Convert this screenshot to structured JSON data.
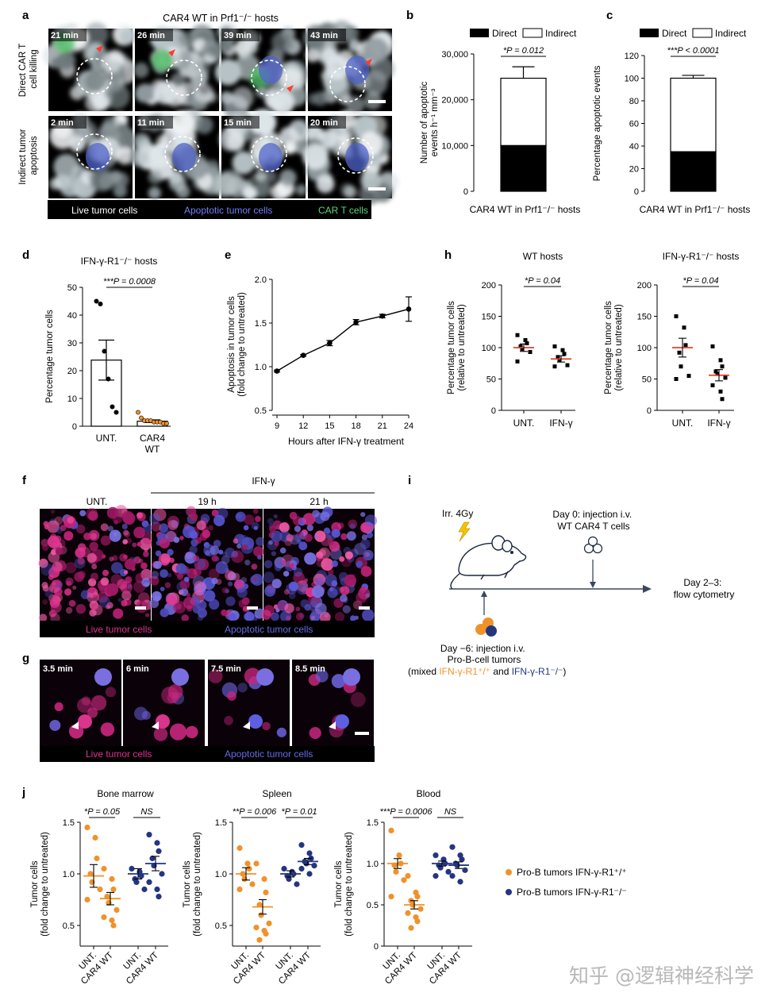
{
  "panel_letters": {
    "a": "a",
    "b": "b",
    "c": "c",
    "d": "d",
    "e": "e",
    "f": "f",
    "g": "g",
    "h": "h",
    "i": "i",
    "j": "j"
  },
  "panel_a": {
    "title": "CAR4 WT in Prf1⁻/⁻ hosts",
    "row1_label": [
      "Direct CAR T",
      "cell killing"
    ],
    "row2_label": [
      "Indirect tumor",
      "apoptosis"
    ],
    "row1_times": [
      "21 min",
      "26 min",
      "39 min",
      "43 min"
    ],
    "row2_times": [
      "2 min",
      "11 min",
      "15 min",
      "20 min"
    ],
    "legend": {
      "live": "Live tumor cells",
      "apoptotic": "Apoptotic tumor cells",
      "cart": "CAR T cells"
    },
    "colors": {
      "live": "#ffffff",
      "apoptotic": "#5a6df0",
      "cart": "#5fd37a"
    }
  },
  "panel_f": {
    "header": "IFN-γ",
    "columns": [
      "UNT.",
      "19 h",
      "21 h"
    ],
    "legend": {
      "live": "Live tumor cells",
      "apoptotic": "Apoptotic tumor cells"
    },
    "colors": {
      "live": "#e0338f",
      "apoptotic": "#6a6ae8"
    }
  },
  "panel_g": {
    "times": [
      "3.5 min",
      "6 min",
      "7.5 min",
      "8.5 min"
    ],
    "legend": {
      "live": "Live tumor cells",
      "apoptotic": "Apoptotic tumor cells"
    }
  },
  "panel_i": {
    "irradiation": "Irr. 4Gy",
    "day0": [
      "Day 0: injection i.v.",
      "WT CAR4 T cells"
    ],
    "day23": [
      "Day 2–3:",
      "flow cytometry"
    ],
    "day_minus6": [
      "Day −6: injection i.v.",
      "Pro-B-cell tumors"
    ],
    "mix_prefix": "(mixed ",
    "mix_wt": "IFN-γ-R1⁺/⁺",
    "mix_and": " and ",
    "mix_ko": "IFN-γ-R1⁻/⁻",
    "mix_suffix": ")",
    "colors": {
      "wt": "#f0922a",
      "ko": "#243580"
    }
  },
  "j_legend": {
    "wt": "Pro-B tumors IFN-γ-R1⁺/⁺",
    "ko": "Pro-B tumors IFN-γ-R1⁻/⁻"
  },
  "watermark": "知乎 @逻辑神经科学",
  "chart_data": [
    {
      "id": "b",
      "type": "bar",
      "stacked": true,
      "categories": [
        "CAR4 WT in Prf1⁻/⁻ hosts"
      ],
      "series": [
        {
          "name": "Direct",
          "values": [
            10000
          ],
          "error": [
            1800
          ],
          "color": "#000000"
        },
        {
          "name": "Indirect",
          "values": [
            14700
          ],
          "error": [
            2500
          ],
          "color": "#ffffff"
        }
      ],
      "ylabel": [
        "Number of apoptotic",
        "events h⁻¹ mm⁻³"
      ],
      "yticks": [
        "0",
        "10,000",
        "20,000",
        "30,000"
      ],
      "ylim": [
        0,
        30000
      ],
      "annotation": "*P = 0.012"
    },
    {
      "id": "c",
      "type": "bar",
      "stacked": true,
      "categories": [
        "CAR4 WT in Prf1⁻/⁻ hosts"
      ],
      "series": [
        {
          "name": "Direct",
          "values": [
            35
          ],
          "error": [
            2.5
          ],
          "color": "#000000"
        },
        {
          "name": "Indirect",
          "values": [
            65
          ],
          "error": [
            2.5
          ],
          "color": "#ffffff"
        }
      ],
      "ylabel": [
        "Percentage apoptotic events"
      ],
      "yticks": [
        "0",
        "20",
        "40",
        "60",
        "80",
        "100",
        "120"
      ],
      "ylim": [
        0,
        120
      ],
      "annotation": "***P < 0.0001"
    },
    {
      "id": "d",
      "type": "bar",
      "title": "IFN-γ-R1⁻/⁻ hosts",
      "categories": [
        "UNT.",
        "CAR4 WT"
      ],
      "values": [
        23.8,
        1.8
      ],
      "error": [
        7.2,
        0.5
      ],
      "points": [
        [
          45,
          44,
          27,
          17,
          7,
          5
        ],
        [
          5,
          3,
          2,
          2,
          2,
          1.5,
          1.5,
          1.5,
          1,
          1
        ]
      ],
      "ylabel": [
        "Percentage tumor cells"
      ],
      "yticks": [
        "0",
        "10",
        "20",
        "30",
        "40",
        "50"
      ],
      "ylim": [
        0,
        50
      ],
      "annotation": "***P = 0.0008"
    },
    {
      "id": "e",
      "type": "line",
      "x": [
        9,
        12,
        15,
        18,
        21,
        24
      ],
      "y": [
        0.95,
        1.13,
        1.27,
        1.51,
        1.58,
        1.66
      ],
      "error": [
        0.01,
        0.01,
        0.03,
        0.03,
        0.02,
        0.14
      ],
      "xlabel": "Hours after IFN-γ treatment",
      "ylabel": [
        "Apoptosis in tumor cells",
        "(fold change to untreated)"
      ],
      "xticks": [
        "9",
        "12",
        "15",
        "18",
        "21",
        "24"
      ],
      "yticks": [
        "0.5",
        "1.0",
        "1.5",
        "2.0"
      ],
      "xlim": [
        9,
        24
      ],
      "ylim": [
        0.5,
        2.0
      ]
    },
    {
      "id": "h1",
      "type": "scatter",
      "title": "WT hosts",
      "categories": [
        "UNT.",
        "IFN-γ"
      ],
      "mean": [
        100,
        82
      ],
      "sem": [
        6,
        5
      ],
      "points": [
        [
          120,
          112,
          107,
          102,
          98,
          93,
          78
        ],
        [
          102,
          96,
          90,
          85,
          80,
          72,
          70
        ]
      ],
      "ylabel": [
        "Percentage tumor cells",
        "(relative to untreated)"
      ],
      "yticks": [
        "0",
        "50",
        "100",
        "150",
        "200"
      ],
      "ylim": [
        0,
        200
      ],
      "annotation": "*P = 0.04"
    },
    {
      "id": "h2",
      "type": "scatter",
      "title": "IFN-γ-R1⁻/⁻ hosts",
      "categories": [
        "UNT.",
        "IFN-γ"
      ],
      "mean": [
        100,
        56
      ],
      "sem": [
        15,
        9
      ],
      "points": [
        [
          150,
          132,
          104,
          92,
          70,
          55,
          50
        ],
        [
          102,
          80,
          70,
          62,
          58,
          52,
          40,
          30,
          18
        ]
      ],
      "ylabel": [
        "Percentage tumor cells",
        "(relative to untreated)"
      ],
      "yticks": [
        "0",
        "50",
        "100",
        "150",
        "200"
      ],
      "ylim": [
        0,
        200
      ],
      "annotation": "*P = 0.04"
    },
    {
      "id": "j1",
      "type": "scatter",
      "title": "Bone marrow",
      "categories": [
        "UNT.",
        "CAR4 WT",
        "UNT.",
        "CAR4 WT"
      ],
      "groups": [
        "wt",
        "wt",
        "ko",
        "ko"
      ],
      "mean": [
        0.98,
        0.76,
        1.0,
        1.1
      ],
      "sem": [
        0.11,
        0.06,
        0.05,
        0.07
      ],
      "points": [
        [
          1.45,
          1.35,
          1.15,
          1.0,
          0.92,
          0.85,
          0.75
        ],
        [
          1.05,
          0.95,
          0.85,
          0.78,
          0.72,
          0.65,
          0.58,
          0.55,
          0.5
        ],
        [
          1.05,
          1.02,
          0.98,
          0.95,
          0.92,
          0.85
        ],
        [
          1.38,
          1.3,
          1.22,
          1.15,
          1.08,
          1.0,
          0.92,
          0.85,
          0.78
        ]
      ],
      "ylabel": [
        "Tumor cells",
        "(fold change to untreated)"
      ],
      "yticks": [
        "0.5",
        "1.0",
        "1.5"
      ],
      "ylim": [
        0.3,
        1.5
      ],
      "annotations": [
        "*P = 0.05",
        "NS"
      ]
    },
    {
      "id": "j2",
      "type": "scatter",
      "title": "Spleen",
      "categories": [
        "UNT.",
        "CAR4 WT",
        "UNT.",
        "CAR4 WT"
      ],
      "groups": [
        "wt",
        "wt",
        "ko",
        "ko"
      ],
      "mean": [
        1.0,
        0.68,
        1.0,
        1.12
      ],
      "sem": [
        0.06,
        0.07,
        0.03,
        0.03
      ],
      "points": [
        [
          1.25,
          1.1,
          1.05,
          1.0,
          0.95,
          0.9,
          0.85
        ],
        [
          1.1,
          0.95,
          0.82,
          0.7,
          0.6,
          0.52,
          0.48,
          0.45,
          0.42,
          0.36
        ],
        [
          1.05,
          1.02,
          1.0,
          0.98,
          0.95,
          0.9
        ],
        [
          1.28,
          1.2,
          1.15,
          1.12,
          1.1,
          1.08,
          1.05,
          1.0
        ]
      ],
      "ylabel": [
        "Tumor cells",
        "(fold change to untreated)"
      ],
      "yticks": [
        "0.5",
        "1.0",
        "1.5"
      ],
      "ylim": [
        0.3,
        1.5
      ],
      "annotations": [
        "**P = 0.006",
        "*P = 0.01"
      ]
    },
    {
      "id": "j3",
      "type": "scatter",
      "title": "Blood",
      "categories": [
        "UNT.",
        "CAR4 WT",
        "UNT.",
        "CAR4 WT"
      ],
      "groups": [
        "wt",
        "wt",
        "ko",
        "ko"
      ],
      "mean": [
        1.0,
        0.5,
        1.0,
        0.98
      ],
      "sem": [
        0.06,
        0.05,
        0.03,
        0.04
      ],
      "points": [
        [
          1.4,
          1.1,
          1.0,
          0.98,
          0.9,
          0.8,
          0.6
        ],
        [
          0.85,
          0.65,
          0.6,
          0.55,
          0.5,
          0.45,
          0.4,
          0.35,
          0.3,
          0.22
        ],
        [
          1.1,
          1.05,
          1.0,
          0.98,
          0.95,
          0.9,
          0.85
        ],
        [
          1.2,
          1.1,
          1.05,
          1.0,
          0.98,
          0.92,
          0.85,
          0.78
        ]
      ],
      "ylabel": [
        "Tumor cells",
        "(fold change to untreated)"
      ],
      "yticks": [
        "0",
        "0.5",
        "1.0",
        "1.5"
      ],
      "ylim": [
        0,
        1.5
      ],
      "annotations": [
        "***P = 0.0006",
        "NS"
      ]
    }
  ]
}
